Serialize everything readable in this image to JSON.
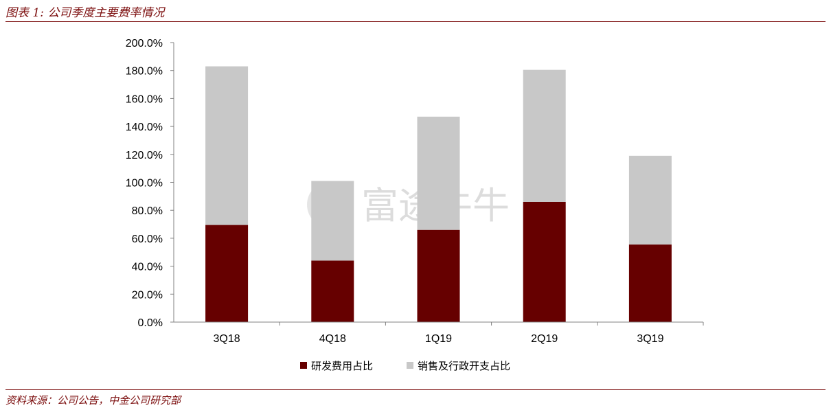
{
  "figure_title": "图表 1:  公司季度主要费率情况",
  "source_note": "资料来源：公司公告，中金公司研究部",
  "watermark": {
    "text": "富途牛牛"
  },
  "colors": {
    "rd": "#660000",
    "sga": "#c8c8c8",
    "accent": "#7b0c0c",
    "axis": "#808080"
  },
  "chart_data": {
    "type": "bar",
    "stacked": true,
    "categories": [
      "3Q18",
      "4Q18",
      "1Q19",
      "2Q19",
      "3Q19"
    ],
    "series": [
      {
        "name": "研发费用占比",
        "values": [
          69.5,
          44.0,
          66.0,
          86.0,
          55.5
        ]
      },
      {
        "name": "销售及行政开支占比",
        "values": [
          113.5,
          57.0,
          81.0,
          94.5,
          63.5
        ]
      }
    ],
    "ylim": [
      0,
      200
    ],
    "yticks": [
      0,
      20,
      40,
      60,
      80,
      100,
      120,
      140,
      160,
      180,
      200
    ],
    "ytick_labels": [
      "0.0%",
      "20.0%",
      "40.0%",
      "60.0%",
      "80.0%",
      "100.0%",
      "120.0%",
      "140.0%",
      "160.0%",
      "180.0%",
      "200.0%"
    ],
    "legend_position": "bottom",
    "grid": false
  }
}
